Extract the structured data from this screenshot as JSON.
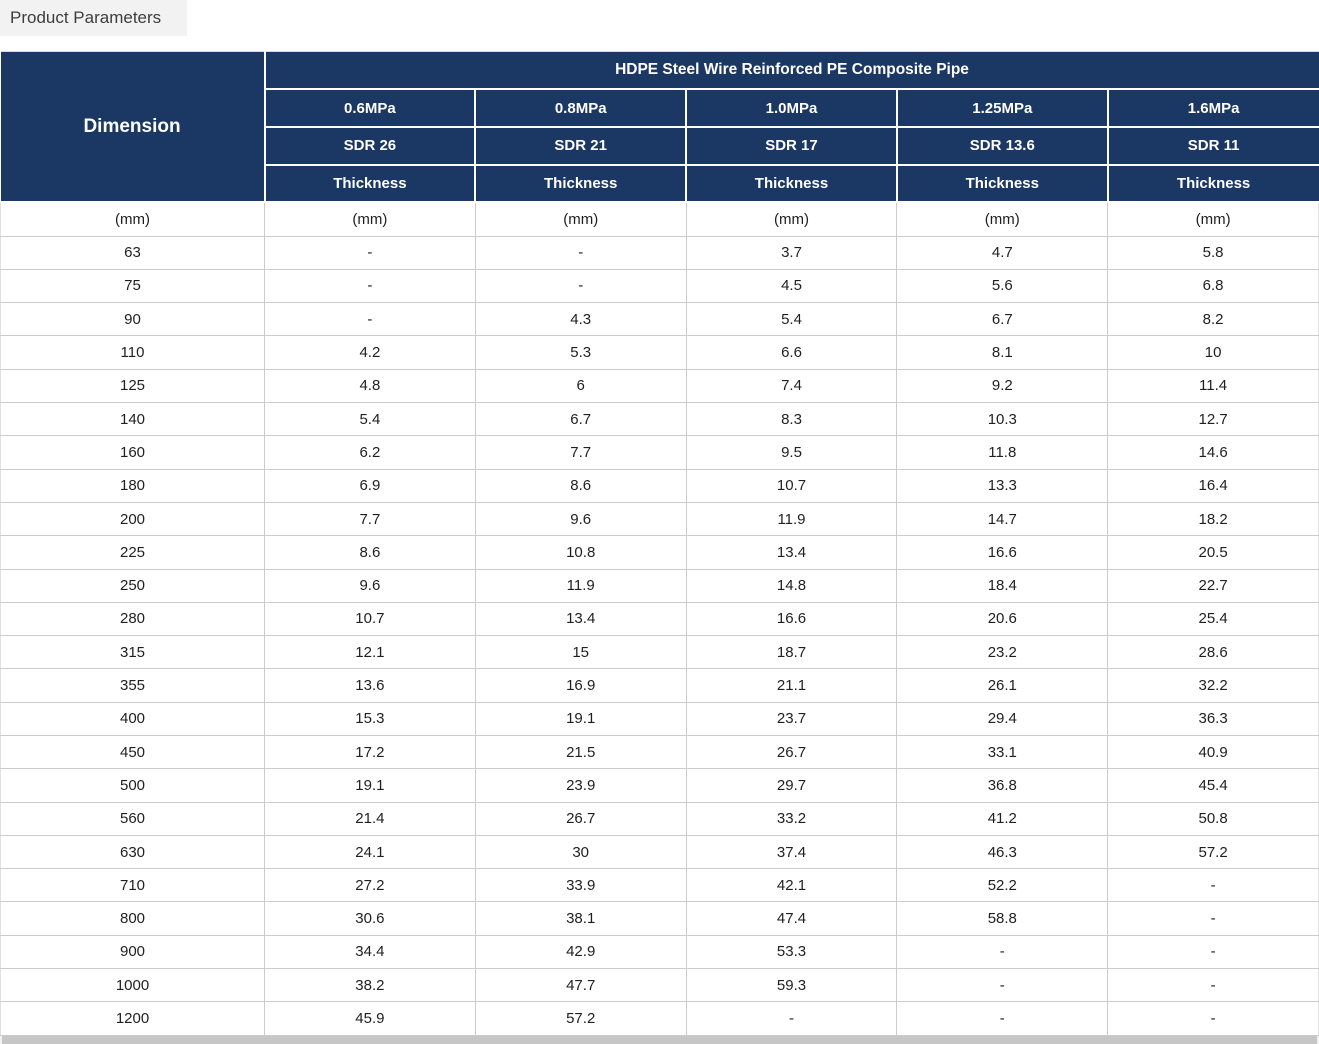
{
  "tab": {
    "label": "Product Parameters"
  },
  "table": {
    "title": "HDPE Steel Wire Reinforced PE Composite Pipe",
    "dimension_header": "Dimension",
    "unit_label": "(mm)",
    "columns": [
      {
        "pressure": "0.6MPa",
        "sdr": "SDR 26",
        "thickness": "Thickness"
      },
      {
        "pressure": "0.8MPa",
        "sdr": "SDR 21",
        "thickness": "Thickness"
      },
      {
        "pressure": "1.0MPa",
        "sdr": "SDR 17",
        "thickness": "Thickness"
      },
      {
        "pressure": "1.25MPa",
        "sdr": "SDR 13.6",
        "thickness": "Thickness"
      },
      {
        "pressure": "1.6MPa",
        "sdr": "SDR 11",
        "thickness": "Thickness"
      }
    ],
    "rows": [
      {
        "dimension": "63",
        "values": [
          "-",
          "-",
          "3.7",
          "4.7",
          "5.8"
        ]
      },
      {
        "dimension": "75",
        "values": [
          "-",
          "-",
          "4.5",
          "5.6",
          "6.8"
        ]
      },
      {
        "dimension": "90",
        "values": [
          "-",
          "4.3",
          "5.4",
          "6.7",
          "8.2"
        ]
      },
      {
        "dimension": "110",
        "values": [
          "4.2",
          "5.3",
          "6.6",
          "8.1",
          "10"
        ]
      },
      {
        "dimension": "125",
        "values": [
          "4.8",
          "6",
          "7.4",
          "9.2",
          "11.4"
        ]
      },
      {
        "dimension": "140",
        "values": [
          "5.4",
          "6.7",
          "8.3",
          "10.3",
          "12.7"
        ]
      },
      {
        "dimension": "160",
        "values": [
          "6.2",
          "7.7",
          "9.5",
          "11.8",
          "14.6"
        ]
      },
      {
        "dimension": "180",
        "values": [
          "6.9",
          "8.6",
          "10.7",
          "13.3",
          "16.4"
        ]
      },
      {
        "dimension": "200",
        "values": [
          "7.7",
          "9.6",
          "11.9",
          "14.7",
          "18.2"
        ]
      },
      {
        "dimension": "225",
        "values": [
          "8.6",
          "10.8",
          "13.4",
          "16.6",
          "20.5"
        ]
      },
      {
        "dimension": "250",
        "values": [
          "9.6",
          "11.9",
          "14.8",
          "18.4",
          "22.7"
        ]
      },
      {
        "dimension": "280",
        "values": [
          "10.7",
          "13.4",
          "16.6",
          "20.6",
          "25.4"
        ]
      },
      {
        "dimension": "315",
        "values": [
          "12.1",
          "15",
          "18.7",
          "23.2",
          "28.6"
        ]
      },
      {
        "dimension": "355",
        "values": [
          "13.6",
          "16.9",
          "21.1",
          "26.1",
          "32.2"
        ]
      },
      {
        "dimension": "400",
        "values": [
          "15.3",
          "19.1",
          "23.7",
          "29.4",
          "36.3"
        ]
      },
      {
        "dimension": "450",
        "values": [
          "17.2",
          "21.5",
          "26.7",
          "33.1",
          "40.9"
        ]
      },
      {
        "dimension": "500",
        "values": [
          "19.1",
          "23.9",
          "29.7",
          "36.8",
          "45.4"
        ]
      },
      {
        "dimension": "560",
        "values": [
          "21.4",
          "26.7",
          "33.2",
          "41.2",
          "50.8"
        ]
      },
      {
        "dimension": "630",
        "values": [
          "24.1",
          "30",
          "37.4",
          "46.3",
          "57.2"
        ]
      },
      {
        "dimension": "710",
        "values": [
          "27.2",
          "33.9",
          "42.1",
          "52.2",
          "-"
        ]
      },
      {
        "dimension": "800",
        "values": [
          "30.6",
          "38.1",
          "47.4",
          "58.8",
          "-"
        ]
      },
      {
        "dimension": "900",
        "values": [
          "34.4",
          "42.9",
          "53.3",
          "-",
          "-"
        ]
      },
      {
        "dimension": "1000",
        "values": [
          "38.2",
          "47.7",
          "59.3",
          "-",
          "-"
        ]
      },
      {
        "dimension": "1200",
        "values": [
          "45.9",
          "57.2",
          "-",
          "-",
          "-"
        ]
      }
    ]
  },
  "colors": {
    "header_bg": "#1b3764",
    "header_text": "#ffffff",
    "body_border": "#cccccc",
    "tab_bg": "#f2f2f2",
    "tab_text": "#3d3d3d",
    "scrollbar_thumb": "#c6c6c6"
  }
}
